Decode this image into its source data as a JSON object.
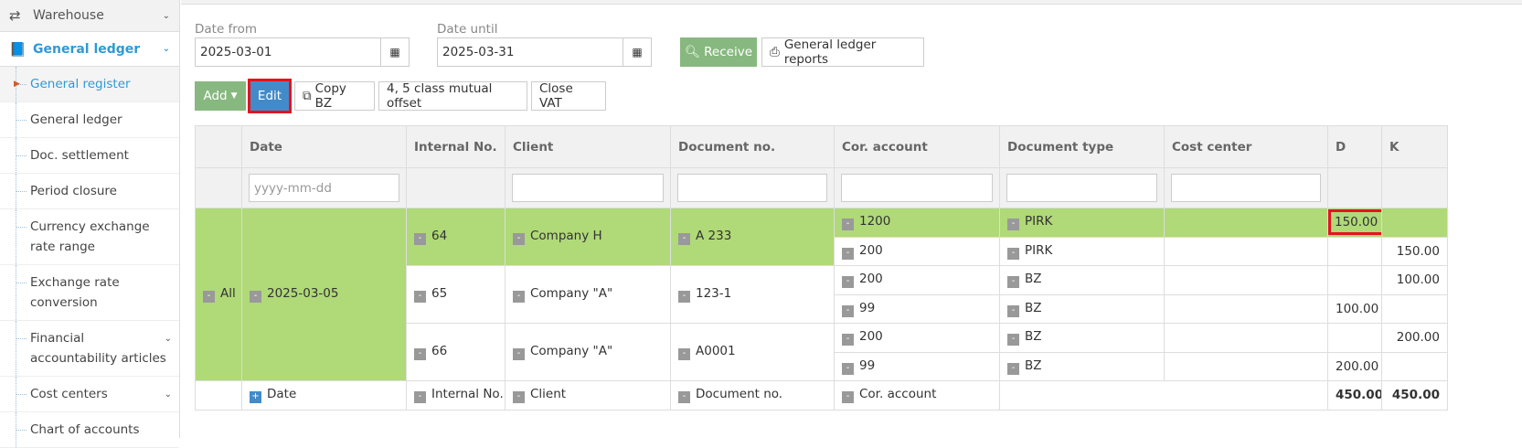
{
  "sidebar": {
    "warehouse": "Warehouse",
    "general_ledger": "General ledger",
    "items": [
      {
        "label": "General register",
        "active": true
      },
      {
        "label": "General ledger"
      },
      {
        "label": "Doc. settlement"
      },
      {
        "label": "Period closure"
      },
      {
        "label": "Currency exchange rate range"
      },
      {
        "label": "Exchange rate conversion"
      },
      {
        "label": "Financial accountability articles",
        "chevron": true
      },
      {
        "label": "Cost centers",
        "chevron": true
      },
      {
        "label": "Chart of accounts"
      }
    ]
  },
  "filters": {
    "date_from_label": "Date from",
    "date_from": "2025-03-01",
    "date_until_label": "Date until",
    "date_until": "2025-03-31",
    "receive": "Receive",
    "reports": "General ledger reports"
  },
  "toolbar": {
    "add": "Add",
    "edit": "Edit",
    "copy": "Copy BZ",
    "offset": "4, 5 class mutual offset",
    "close_vat": "Close VAT"
  },
  "table": {
    "headers": [
      "",
      "Date",
      "Internal No.",
      "Client",
      "Document no.",
      "Cor. account",
      "Document type",
      "Cost center",
      "D",
      "K"
    ],
    "date_placeholder": "yyyy-mm-dd",
    "group": {
      "all": "All",
      "date": "2025-03-05"
    },
    "docs": [
      {
        "internal": "64",
        "client": "Company H",
        "doc": "A 233",
        "lines": [
          {
            "acc": "1200",
            "type": "PIRK",
            "d": "150.00",
            "k": ""
          },
          {
            "acc": "200",
            "type": "PIRK",
            "d": "",
            "k": "150.00"
          }
        ]
      },
      {
        "internal": "65",
        "client": "Company \"A\"",
        "doc": "123-1",
        "lines": [
          {
            "acc": "200",
            "type": "BZ",
            "d": "",
            "k": "100.00"
          },
          {
            "acc": "99",
            "type": "BZ",
            "d": "100.00",
            "k": ""
          }
        ]
      },
      {
        "internal": "66",
        "client": "Company \"A\"",
        "doc": "A0001",
        "lines": [
          {
            "acc": "200",
            "type": "BZ",
            "d": "",
            "k": "200.00"
          },
          {
            "acc": "99",
            "type": "BZ",
            "d": "200.00",
            "k": ""
          }
        ]
      }
    ],
    "footer": {
      "date": "Date",
      "internal": "Internal No.",
      "client": "Client",
      "doc": "Document no.",
      "acc": "Cor. account",
      "d": "450.00",
      "k": "450.00"
    }
  },
  "colors": {
    "selected_row": "#b0d978",
    "add": "#87b87f",
    "edit": "#428bca",
    "highlight": "#e5131d",
    "accent": "#2e9ad6"
  }
}
